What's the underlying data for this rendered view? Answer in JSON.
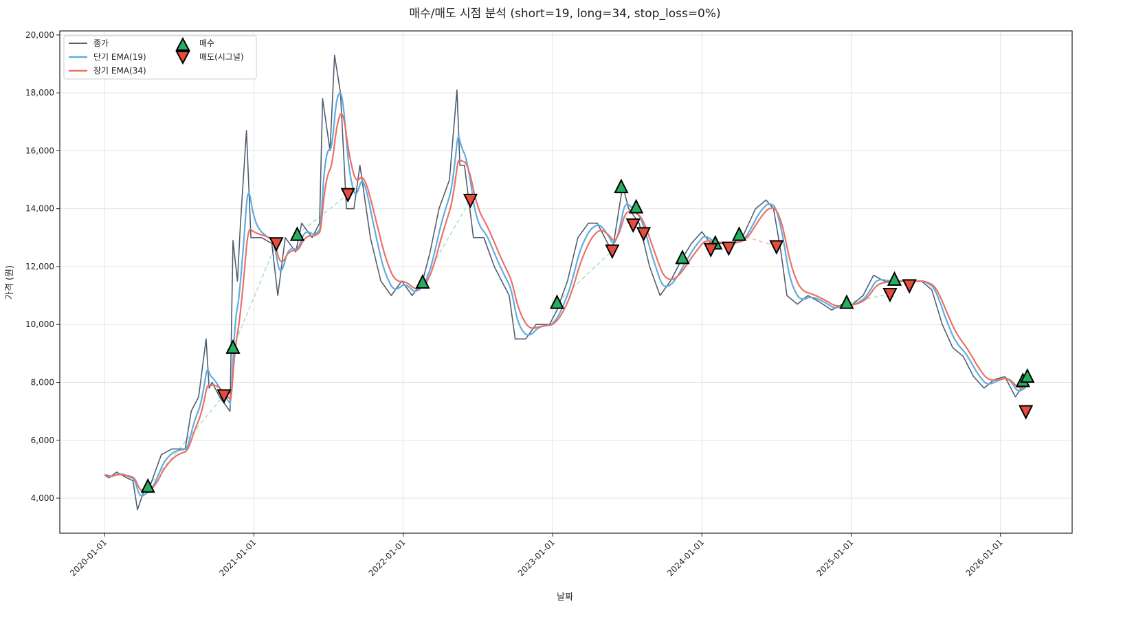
{
  "chart_data": {
    "type": "line",
    "title": "매수/매도 시점 분석 (short=19, long=34, stop_loss=0%)",
    "xlabel": "날짜",
    "ylabel": "가격 (원)",
    "xlim": [
      2019.7,
      2026.48
    ],
    "ylim": [
      2790,
      20140
    ],
    "grid": true,
    "legend_placement": "top-left",
    "x_ticks": [
      {
        "x": 2020,
        "label": "2020-01-01"
      },
      {
        "x": 2021,
        "label": "2021-01-01"
      },
      {
        "x": 2022,
        "label": "2022-01-01"
      },
      {
        "x": 2023,
        "label": "2023-01-01"
      },
      {
        "x": 2024,
        "label": "2024-01-01"
      },
      {
        "x": 2025,
        "label": "2025-01-01"
      },
      {
        "x": 2026,
        "label": "2026-01-01"
      }
    ],
    "y_ticks": [
      {
        "y": 4000,
        "label": "4,000"
      },
      {
        "y": 6000,
        "label": "6,000"
      },
      {
        "y": 8000,
        "label": "8,000"
      },
      {
        "y": 10000,
        "label": "10,000"
      },
      {
        "y": 12000,
        "label": "12,000"
      },
      {
        "y": 14000,
        "label": "14,000"
      },
      {
        "y": 16000,
        "label": "16,000"
      },
      {
        "y": 18000,
        "label": "18,000"
      },
      {
        "y": 20000,
        "label": "20,000"
      }
    ],
    "legend": {
      "close": "종가",
      "ema_short": "단기 EMA(19)",
      "ema_long": "장기 EMA(34)",
      "buy": "매수",
      "sell": "매도(시그널)"
    },
    "colors": {
      "close": "#4f5d70",
      "ema_short": "#5dade2",
      "ema_long": "#ec7063",
      "buy": "#27ae60",
      "sell": "#e74c3c",
      "trade_win": "#a9dfbf",
      "trade_loss": "#f5b7b1"
    },
    "ema_spans": {
      "short": 19,
      "long": 34
    },
    "close": [
      [
        2020.0,
        4800
      ],
      [
        2020.03,
        4700
      ],
      [
        2020.08,
        4900
      ],
      [
        2020.15,
        4700
      ],
      [
        2020.19,
        4600
      ],
      [
        2020.22,
        3600
      ],
      [
        2020.26,
        4200
      ],
      [
        2020.31,
        4500
      ],
      [
        2020.38,
        5500
      ],
      [
        2020.45,
        5700
      ],
      [
        2020.54,
        5700
      ],
      [
        2020.58,
        7000
      ],
      [
        2020.63,
        7500
      ],
      [
        2020.68,
        9500
      ],
      [
        2020.7,
        7800
      ],
      [
        2020.72,
        8000
      ],
      [
        2020.77,
        7500
      ],
      [
        2020.84,
        7000
      ],
      [
        2020.86,
        12900
      ],
      [
        2020.89,
        11500
      ],
      [
        2020.91,
        13500
      ],
      [
        2020.95,
        16700
      ],
      [
        2020.98,
        13000
      ],
      [
        2021.05,
        13000
      ],
      [
        2021.12,
        12800
      ],
      [
        2021.16,
        11000
      ],
      [
        2021.21,
        13000
      ],
      [
        2021.28,
        12500
      ],
      [
        2021.32,
        13500
      ],
      [
        2021.39,
        13000
      ],
      [
        2021.44,
        13500
      ],
      [
        2021.46,
        17800
      ],
      [
        2021.51,
        16000
      ],
      [
        2021.54,
        19300
      ],
      [
        2021.58,
        18000
      ],
      [
        2021.62,
        14000
      ],
      [
        2021.67,
        14000
      ],
      [
        2021.71,
        15500
      ],
      [
        2021.78,
        13000
      ],
      [
        2021.85,
        11500
      ],
      [
        2021.92,
        11000
      ],
      [
        2021.99,
        11500
      ],
      [
        2022.06,
        11000
      ],
      [
        2022.13,
        11500
      ],
      [
        2022.18,
        12500
      ],
      [
        2022.24,
        14000
      ],
      [
        2022.31,
        15000
      ],
      [
        2022.36,
        18100
      ],
      [
        2022.38,
        15500
      ],
      [
        2022.41,
        15500
      ],
      [
        2022.47,
        13000
      ],
      [
        2022.54,
        13000
      ],
      [
        2022.61,
        12000
      ],
      [
        2022.71,
        11000
      ],
      [
        2022.75,
        9500
      ],
      [
        2022.82,
        9500
      ],
      [
        2022.89,
        10000
      ],
      [
        2022.98,
        10000
      ],
      [
        2023.03,
        10500
      ],
      [
        2023.1,
        11500
      ],
      [
        2023.17,
        13000
      ],
      [
        2023.24,
        13500
      ],
      [
        2023.3,
        13500
      ],
      [
        2023.4,
        12500
      ],
      [
        2023.47,
        14800
      ],
      [
        2023.51,
        14000
      ],
      [
        2023.58,
        13500
      ],
      [
        2023.65,
        12000
      ],
      [
        2023.72,
        11000
      ],
      [
        2023.79,
        11500
      ],
      [
        2023.86,
        12200
      ],
      [
        2023.93,
        12800
      ],
      [
        2024.0,
        13200
      ],
      [
        2024.06,
        12800
      ],
      [
        2024.13,
        12800
      ],
      [
        2024.2,
        12800
      ],
      [
        2024.27,
        13000
      ],
      [
        2024.36,
        14000
      ],
      [
        2024.43,
        14300
      ],
      [
        2024.48,
        14000
      ],
      [
        2024.53,
        12500
      ],
      [
        2024.57,
        11000
      ],
      [
        2024.64,
        10700
      ],
      [
        2024.71,
        11000
      ],
      [
        2024.78,
        10800
      ],
      [
        2024.87,
        10500
      ],
      [
        2024.94,
        10700
      ],
      [
        2025.01,
        10700
      ],
      [
        2025.08,
        11000
      ],
      [
        2025.15,
        11700
      ],
      [
        2025.22,
        11500
      ],
      [
        2025.29,
        11500
      ],
      [
        2025.38,
        11500
      ],
      [
        2025.47,
        11500
      ],
      [
        2025.54,
        11200
      ],
      [
        2025.61,
        10000
      ],
      [
        2025.68,
        9200
      ],
      [
        2025.75,
        8900
      ],
      [
        2025.82,
        8200
      ],
      [
        2025.89,
        7800
      ],
      [
        2025.96,
        8100
      ],
      [
        2026.03,
        8200
      ],
      [
        2026.1,
        7500
      ],
      [
        2026.14,
        7800
      ],
      [
        2026.17,
        8000
      ]
    ],
    "buy_signals": [
      [
        2020.29,
        4400
      ],
      [
        2020.86,
        9200
      ],
      [
        2021.29,
        13100
      ],
      [
        2022.13,
        11450
      ],
      [
        2023.03,
        10750
      ],
      [
        2023.46,
        14750
      ],
      [
        2023.56,
        14050
      ],
      [
        2023.87,
        12300
      ],
      [
        2024.09,
        12800
      ],
      [
        2024.25,
        13100
      ],
      [
        2024.97,
        10750
      ],
      [
        2025.29,
        11550
      ],
      [
        2026.15,
        8050
      ],
      [
        2026.18,
        8200
      ]
    ],
    "sell_signals": [
      [
        2020.8,
        7550
      ],
      [
        2021.15,
        12800
      ],
      [
        2021.63,
        14500
      ],
      [
        2022.45,
        14300
      ],
      [
        2023.4,
        12550
      ],
      [
        2023.54,
        13450
      ],
      [
        2023.61,
        13150
      ],
      [
        2024.06,
        12600
      ],
      [
        2024.18,
        12650
      ],
      [
        2024.5,
        12700
      ],
      [
        2025.26,
        11050
      ],
      [
        2025.39,
        11350
      ],
      [
        2026.17,
        7000
      ]
    ],
    "trades": [
      {
        "entry": [
          2020.29,
          4400
        ],
        "exit": [
          2020.8,
          7550
        ],
        "result": "win"
      },
      {
        "entry": [
          2020.86,
          9200
        ],
        "exit": [
          2021.15,
          12800
        ],
        "result": "win"
      },
      {
        "entry": [
          2021.29,
          13100
        ],
        "exit": [
          2021.63,
          14500
        ],
        "result": "win"
      },
      {
        "entry": [
          2022.13,
          11450
        ],
        "exit": [
          2022.45,
          14300
        ],
        "result": "win"
      },
      {
        "entry": [
          2023.03,
          10750
        ],
        "exit": [
          2023.4,
          12550
        ],
        "result": "win"
      },
      {
        "entry": [
          2024.25,
          13100
        ],
        "exit": [
          2024.5,
          12700
        ],
        "result": "loss"
      },
      {
        "entry": [
          2024.97,
          10750
        ],
        "exit": [
          2025.26,
          11050
        ],
        "result": "win"
      }
    ]
  }
}
